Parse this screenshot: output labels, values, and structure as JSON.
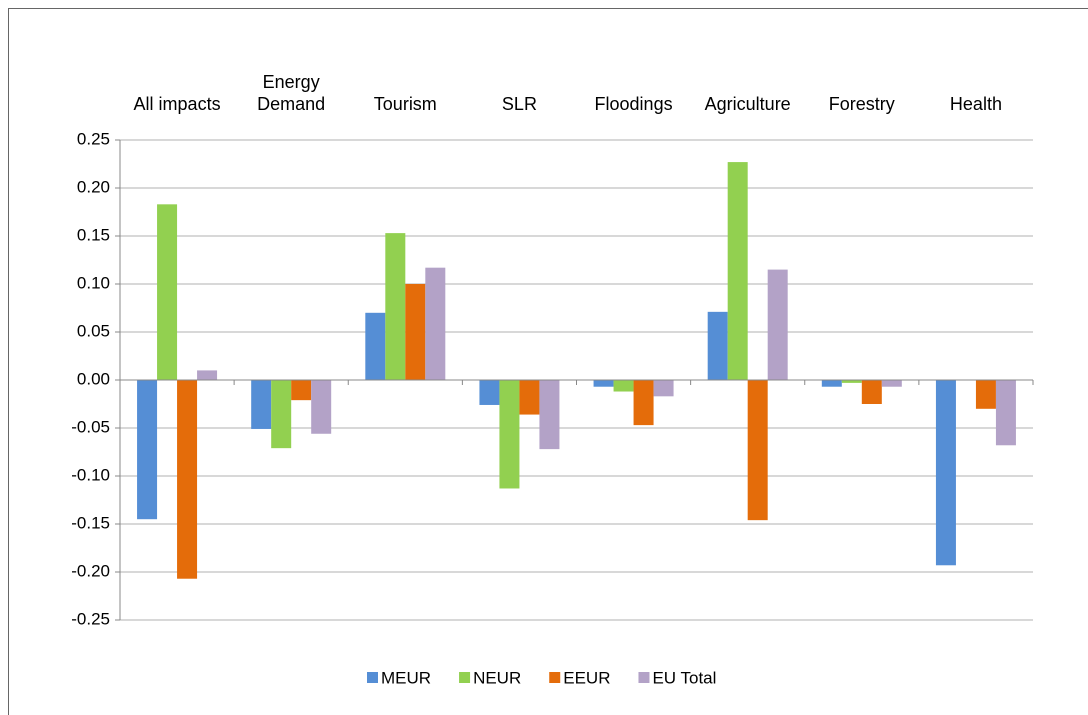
{
  "chart_data": {
    "type": "bar",
    "categories": [
      "All impacts",
      "Energy Demand",
      "Tourism",
      "SLR",
      "Floodings",
      "Agriculture",
      "Forestry",
      "Health"
    ],
    "series": [
      {
        "name": "MEUR",
        "color": "#558ed5",
        "values": [
          -0.145,
          -0.051,
          0.07,
          -0.026,
          -0.007,
          0.071,
          -0.007,
          -0.193
        ]
      },
      {
        "name": "NEUR",
        "color": "#92d050",
        "values": [
          0.183,
          -0.071,
          0.153,
          -0.113,
          -0.012,
          0.227,
          -0.003,
          0
        ]
      },
      {
        "name": "EEUR",
        "color": "#e46c0a",
        "values": [
          -0.207,
          -0.021,
          0.1,
          -0.036,
          -0.047,
          -0.146,
          -0.025,
          -0.03
        ]
      },
      {
        "name": "EU Total",
        "color": "#b3a2c7",
        "values": [
          0.01,
          -0.056,
          0.117,
          -0.072,
          -0.017,
          0.115,
          -0.007,
          -0.068
        ]
      }
    ],
    "ylim": [
      -0.25,
      0.25
    ],
    "yticks": [
      0.25,
      {
        "value": 0.2,
        "label": "0.20"
      },
      0.15,
      {
        "value": 0.1,
        "label": "0.10"
      },
      0.05,
      {
        "value": 0,
        "label": "0.00"
      },
      -0.05,
      {
        "value": -0.1,
        "label": "-0.10"
      },
      -0.15,
      {
        "value": -0.2,
        "label": "-0.20"
      },
      -0.25
    ],
    "grid": true,
    "legend": "bottom"
  }
}
